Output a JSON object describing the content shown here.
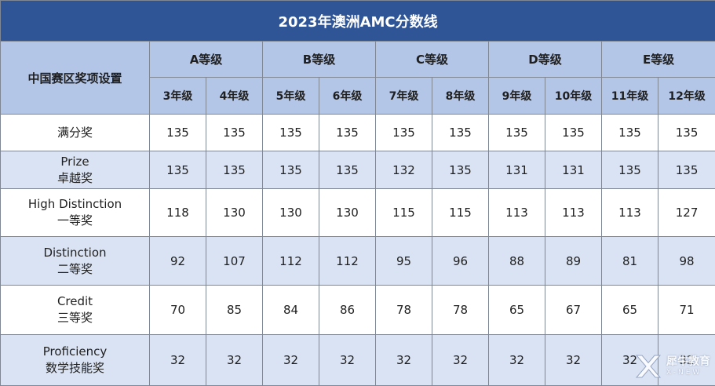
{
  "title": "2023年澳洲AMC分数线",
  "row_header": "中国赛区奖项设置",
  "levels": [
    {
      "label": "A等级",
      "grades": [
        "3年级",
        "4年级"
      ]
    },
    {
      "label": "B等级",
      "grades": [
        "5年级",
        "6年级"
      ]
    },
    {
      "label": "C等级",
      "grades": [
        "7年级",
        "8年级"
      ]
    },
    {
      "label": "D等级",
      "grades": [
        "9年级",
        "10年级"
      ]
    },
    {
      "label": "E等级",
      "grades": [
        "11年级",
        "12年级"
      ]
    }
  ],
  "rows": [
    {
      "en": "",
      "cn": "满分奖",
      "scores": [
        "135",
        "135",
        "135",
        "135",
        "135",
        "135",
        "135",
        "135",
        "135",
        "135"
      ]
    },
    {
      "en": "Prize",
      "cn": "卓越奖",
      "scores": [
        "135",
        "135",
        "135",
        "135",
        "132",
        "135",
        "131",
        "131",
        "135",
        "135"
      ]
    },
    {
      "en": "High Distinction",
      "cn": "一等奖",
      "scores": [
        "118",
        "130",
        "130",
        "130",
        "115",
        "115",
        "113",
        "113",
        "113",
        "127"
      ]
    },
    {
      "en": "Distinction",
      "cn": "二等奖",
      "scores": [
        "92",
        "107",
        "112",
        "112",
        "95",
        "96",
        "88",
        "89",
        "81",
        "98"
      ]
    },
    {
      "en": "Credit",
      "cn": "三等奖",
      "scores": [
        "70",
        "85",
        "84",
        "86",
        "78",
        "78",
        "65",
        "67",
        "65",
        "71"
      ]
    },
    {
      "en": "Proficiency",
      "cn": "数学技能奖",
      "scores": [
        "32",
        "32",
        "32",
        "32",
        "32",
        "32",
        "32",
        "32",
        "32",
        "32"
      ]
    }
  ],
  "watermark": {
    "cn": "犀牛教育",
    "en": "X-NEW",
    "icon": "x-logo-icon"
  }
}
